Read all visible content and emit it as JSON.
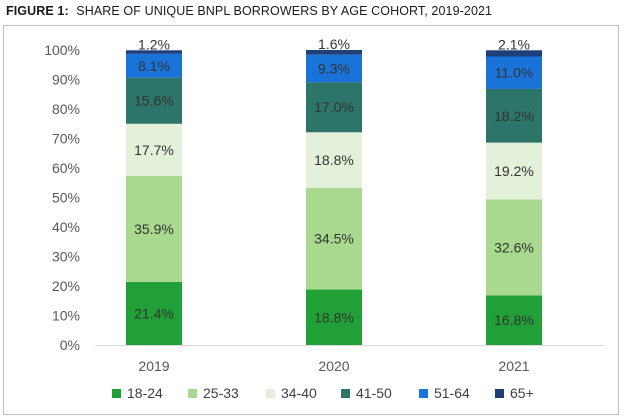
{
  "figure": {
    "label": "FIGURE 1:",
    "title": "SHARE OF UNIQUE BNPL BORROWERS BY AGE COHORT, 2019-2021"
  },
  "chart_data": {
    "type": "bar",
    "stacked": true,
    "title": "SHARE OF UNIQUE BNPL BORROWERS BY AGE COHORT, 2019-2021",
    "xlabel": "",
    "ylabel": "",
    "categories": [
      "2019",
      "2020",
      "2021"
    ],
    "y_ticks": [
      "0%",
      "10%",
      "20%",
      "30%",
      "40%",
      "50%",
      "60%",
      "70%",
      "80%",
      "90%",
      "100%"
    ],
    "ylim": [
      0,
      100
    ],
    "grid": false,
    "legend_position": "bottom",
    "series": [
      {
        "name": "18-24",
        "color": "#22a038",
        "values": [
          21.4,
          18.8,
          16.8
        ],
        "labels": [
          "21.4%",
          "18.8%",
          "16.8%"
        ]
      },
      {
        "name": "25-33",
        "color": "#a9d98e",
        "values": [
          35.9,
          34.5,
          32.6
        ],
        "labels": [
          "35.9%",
          "34.5%",
          "32.6%"
        ]
      },
      {
        "name": "34-40",
        "color": "#e3f0da",
        "values": [
          17.7,
          18.8,
          19.2
        ],
        "labels": [
          "17.7%",
          "18.8%",
          "19.2%"
        ]
      },
      {
        "name": "41-50",
        "color": "#2e7569",
        "values": [
          15.6,
          17.0,
          18.2
        ],
        "labels": [
          "15.6%",
          "17.0%",
          "18.2%"
        ]
      },
      {
        "name": "51-64",
        "color": "#1a73d9",
        "values": [
          8.1,
          9.3,
          11.0
        ],
        "labels": [
          "8.1%",
          "9.3%",
          "11.0%"
        ]
      },
      {
        "name": "65+",
        "color": "#1f3f7a",
        "values": [
          1.2,
          1.6,
          2.1
        ],
        "labels": [
          "1.2%",
          "1.6%",
          "2.1%"
        ]
      }
    ]
  }
}
